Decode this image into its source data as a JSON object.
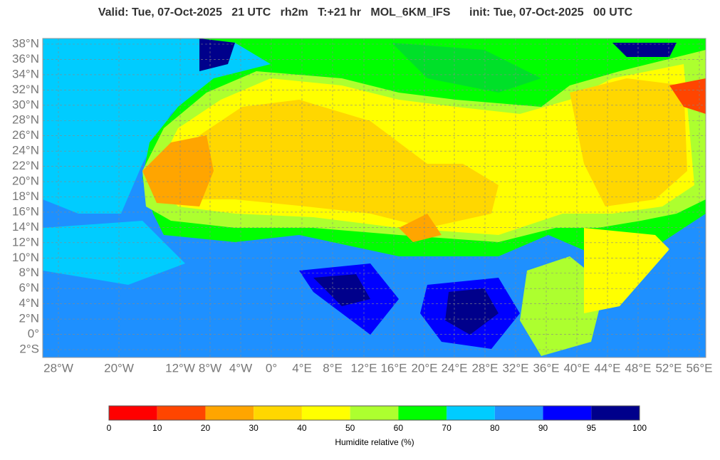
{
  "header": {
    "title": "Valid: Tue, 07-Oct-2025   21 UTC   rh2m   T:+21 hr   MOL_6KM_IFS      init: Tue, 07-Oct-2025   00 UTC"
  },
  "map": {
    "lat_labels": [
      "38°N",
      "36°N",
      "34°N",
      "32°N",
      "30°N",
      "28°N",
      "26°N",
      "24°N",
      "22°N",
      "20°N",
      "18°N",
      "16°N",
      "14°N",
      "12°N",
      "10°N",
      "8°N",
      "6°N",
      "4°N",
      "2°N",
      "0°",
      "2°S"
    ],
    "lon_labels": [
      "28°W",
      "20°W",
      "12°W",
      "8°W",
      "4°W",
      "0°",
      "4°E",
      "8°E",
      "12°E",
      "16°E",
      "20°E",
      "24°E",
      "28°E",
      "32°E",
      "36°E",
      "40°E",
      "44°E",
      "48°E",
      "52°E",
      "56°E"
    ]
  },
  "colorbar": {
    "label": "Humidite relative (%)",
    "bounds": [
      0,
      10,
      20,
      30,
      40,
      50,
      60,
      70,
      80,
      90,
      95,
      100
    ],
    "colors": [
      "#ff0000",
      "#ff4500",
      "#ffa500",
      "#ffd700",
      "#ffff00",
      "#adff2f",
      "#00ff00",
      "#00ccff",
      "#1e90ff",
      "#0000ff",
      "#00008b"
    ]
  }
}
